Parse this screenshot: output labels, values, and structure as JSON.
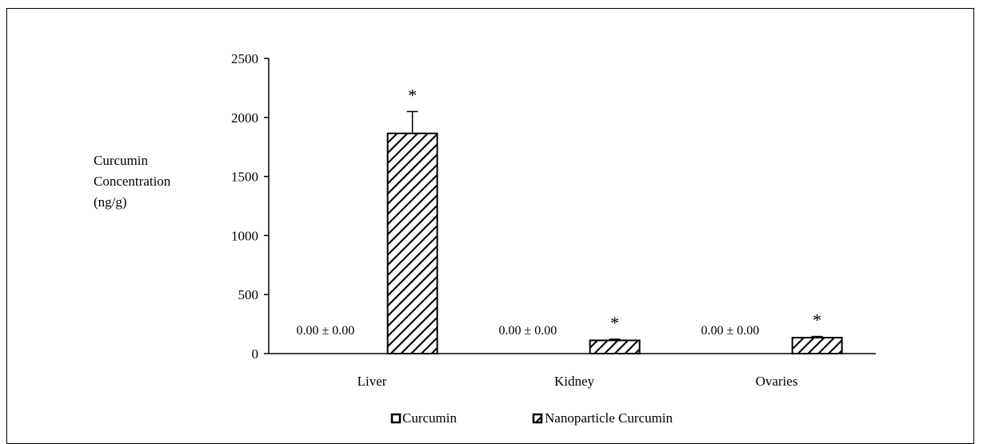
{
  "chart_data": {
    "type": "bar",
    "title": "",
    "ylabel": [
      "Curcumin",
      "Concentration",
      "(ng/g)"
    ],
    "xlabel": "",
    "ylim": [
      0,
      2500
    ],
    "yticks": [
      0,
      500,
      1000,
      1500,
      2000,
      2500
    ],
    "categories": [
      "Liver",
      "Kidney",
      "Ovaries"
    ],
    "series": [
      {
        "name": "Curcumin",
        "values": [
          0,
          0,
          0
        ],
        "errors": [
          0,
          0,
          0
        ],
        "fill": "#ffffff",
        "value_labels": [
          "0.00 ± 0.00",
          "0.00 ± 0.00",
          "0.00 ± 0.00"
        ]
      },
      {
        "name": "Nanoparticle Curcumin",
        "values": [
          1865,
          112,
          135
        ],
        "errors": [
          185,
          10,
          10
        ],
        "fill": "hatched",
        "annotations": [
          "*",
          "*",
          "*"
        ]
      }
    ],
    "legend_position": "bottom",
    "grid": false
  }
}
